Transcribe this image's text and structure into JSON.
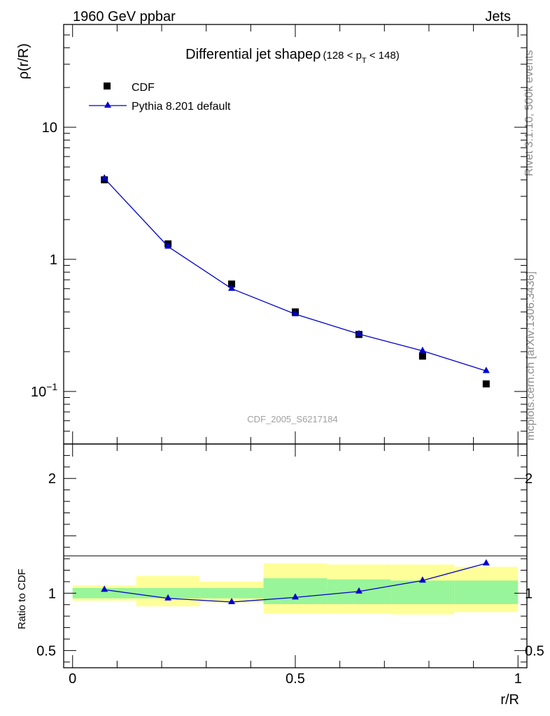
{
  "header": {
    "left_label": "1960 GeV ppbar",
    "right_label": "Jets"
  },
  "side_labels": {
    "rivet": "Rivet 3.1.10,  500k events",
    "mcplots": "mcplots.cern.ch [arXiv:1306.3436]"
  },
  "chart_data": [
    {
      "type": "scatter",
      "title": "Differential jet shapeρ",
      "title_range": "(128 < p",
      "title_sub": "T",
      "title_range_end": " < 148)",
      "ylabel": "ρ(r/R)",
      "xlabel": "r/R",
      "yscale": "log",
      "ylim": [
        0.04,
        60
      ],
      "xlim": [
        -0.02,
        1.02
      ],
      "analysis_label": "CDF_2005_S6217184",
      "y_ticks": [
        {
          "value": 10,
          "label": "10"
        },
        {
          "value": 1,
          "label": "1"
        },
        {
          "value": 0.1,
          "label": "10",
          "sup": "−1"
        }
      ],
      "legend_position": "top-left",
      "series": [
        {
          "name": "CDF",
          "style": "markers",
          "marker": "square",
          "color": "#000000",
          "x": [
            0.0714,
            0.2143,
            0.3571,
            0.5,
            0.6429,
            0.7857,
            0.9286
          ],
          "y": [
            4.0,
            1.31,
            0.65,
            0.4,
            0.27,
            0.185,
            0.114
          ]
        },
        {
          "name": "Pythia 8.201 default",
          "style": "line-markers",
          "marker": "triangle",
          "color": "#0000cc",
          "x": [
            0.0714,
            0.2143,
            0.3571,
            0.5,
            0.6429,
            0.7857,
            0.9286
          ],
          "y": [
            4.1,
            1.25,
            0.6,
            0.385,
            0.272,
            0.203,
            0.143
          ]
        }
      ]
    },
    {
      "type": "scatter",
      "ylabel": "Ratio to CDF",
      "xlabel": "r/R",
      "ylim": [
        0.35,
        2.3
      ],
      "xlim": [
        -0.02,
        1.02
      ],
      "y_ticks": [
        {
          "value": 2,
          "label": "2"
        },
        {
          "value": 1,
          "label": "1"
        },
        {
          "value": 0.5,
          "label": "0.5"
        }
      ],
      "x_ticks": [
        {
          "value": 0,
          "label": "0"
        },
        {
          "value": 0.5,
          "label": "0.5"
        },
        {
          "value": 1,
          "label": "1"
        }
      ],
      "bands": {
        "bin_edges": [
          0,
          0.1429,
          0.2857,
          0.4286,
          0.5714,
          0.7143,
          0.8571,
          1.0
        ],
        "stat_color": "#99f599",
        "total_color": "#ffff99",
        "stat_low": [
          0.955,
          0.955,
          0.955,
          0.905,
          0.905,
          0.905,
          0.905
        ],
        "stat_high": [
          1.045,
          1.045,
          1.045,
          1.13,
          1.12,
          1.11,
          1.11
        ],
        "total_low": [
          0.935,
          0.885,
          0.92,
          0.82,
          0.82,
          0.815,
          0.835
        ],
        "total_high": [
          1.07,
          1.15,
          1.1,
          1.26,
          1.25,
          1.25,
          1.23
        ]
      },
      "series": [
        {
          "name": "Pythia 8.201 default",
          "style": "line-markers",
          "marker": "triangle",
          "color": "#0000cc",
          "x": [
            0.0714,
            0.2143,
            0.3571,
            0.5,
            0.6429,
            0.7857,
            0.9286
          ],
          "y": [
            1.03,
            0.955,
            0.923,
            0.963,
            1.015,
            1.11,
            1.26
          ]
        }
      ]
    }
  ]
}
